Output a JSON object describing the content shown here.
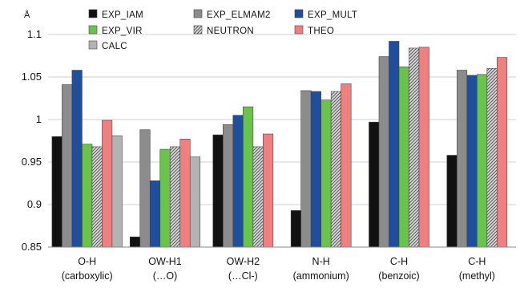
{
  "chart_data": {
    "type": "bar",
    "y_unit_label": "Å",
    "ylim": [
      0.85,
      1.1
    ],
    "y_ticks": [
      0.85,
      0.9,
      0.95,
      1,
      1.05,
      1.1
    ],
    "y_tick_labels": [
      "0.85",
      "0.9",
      "0.95",
      "1",
      "1.05",
      "1.1"
    ],
    "grid": true,
    "legend_position": "top",
    "categories": [
      {
        "line1": "O-H",
        "line2": "(carboxylic)"
      },
      {
        "line1": "OW-H1",
        "line2": "(…O)"
      },
      {
        "line1": "OW-H2",
        "line2": "(…Cl-)"
      },
      {
        "line1": "N-H",
        "line2": "(ammonium)"
      },
      {
        "line1": "C-H",
        "line2": "(benzoic)"
      },
      {
        "line1": "C-H",
        "line2": "(methyl)"
      }
    ],
    "series": [
      {
        "name": "EXP_IAM",
        "color": "#111111",
        "pattern": "solid",
        "values": [
          0.98,
          0.862,
          0.982,
          0.893,
          0.997,
          0.958
        ]
      },
      {
        "name": "EXP_ELMAM2",
        "color": "#8c8c8c",
        "pattern": "solid",
        "values": [
          1.041,
          0.988,
          0.994,
          1.034,
          1.074,
          1.058
        ]
      },
      {
        "name": "EXP_MULT",
        "color": "#1f4e9c",
        "pattern": "solid",
        "values": [
          1.058,
          0.928,
          1.005,
          1.033,
          1.092,
          1.052
        ]
      },
      {
        "name": "EXP_VIR",
        "color": "#6ac34a",
        "pattern": "solid",
        "values": [
          0.971,
          0.965,
          1.015,
          1.023,
          1.062,
          1.053
        ]
      },
      {
        "name": "NEUTRON",
        "color": "#9a9a9a",
        "pattern": "hatch",
        "values": [
          0.968,
          0.968,
          0.968,
          1.033,
          1.084,
          1.06
        ]
      },
      {
        "name": "THEO",
        "color": "#f08080",
        "pattern": "solid",
        "values": [
          0.999,
          0.977,
          0.983,
          1.042,
          1.085,
          1.073
        ]
      },
      {
        "name": "CALC",
        "color": "#b3b3b3",
        "pattern": "solid",
        "values": [
          0.981,
          0.956,
          null,
          null,
          null,
          null
        ]
      }
    ]
  }
}
